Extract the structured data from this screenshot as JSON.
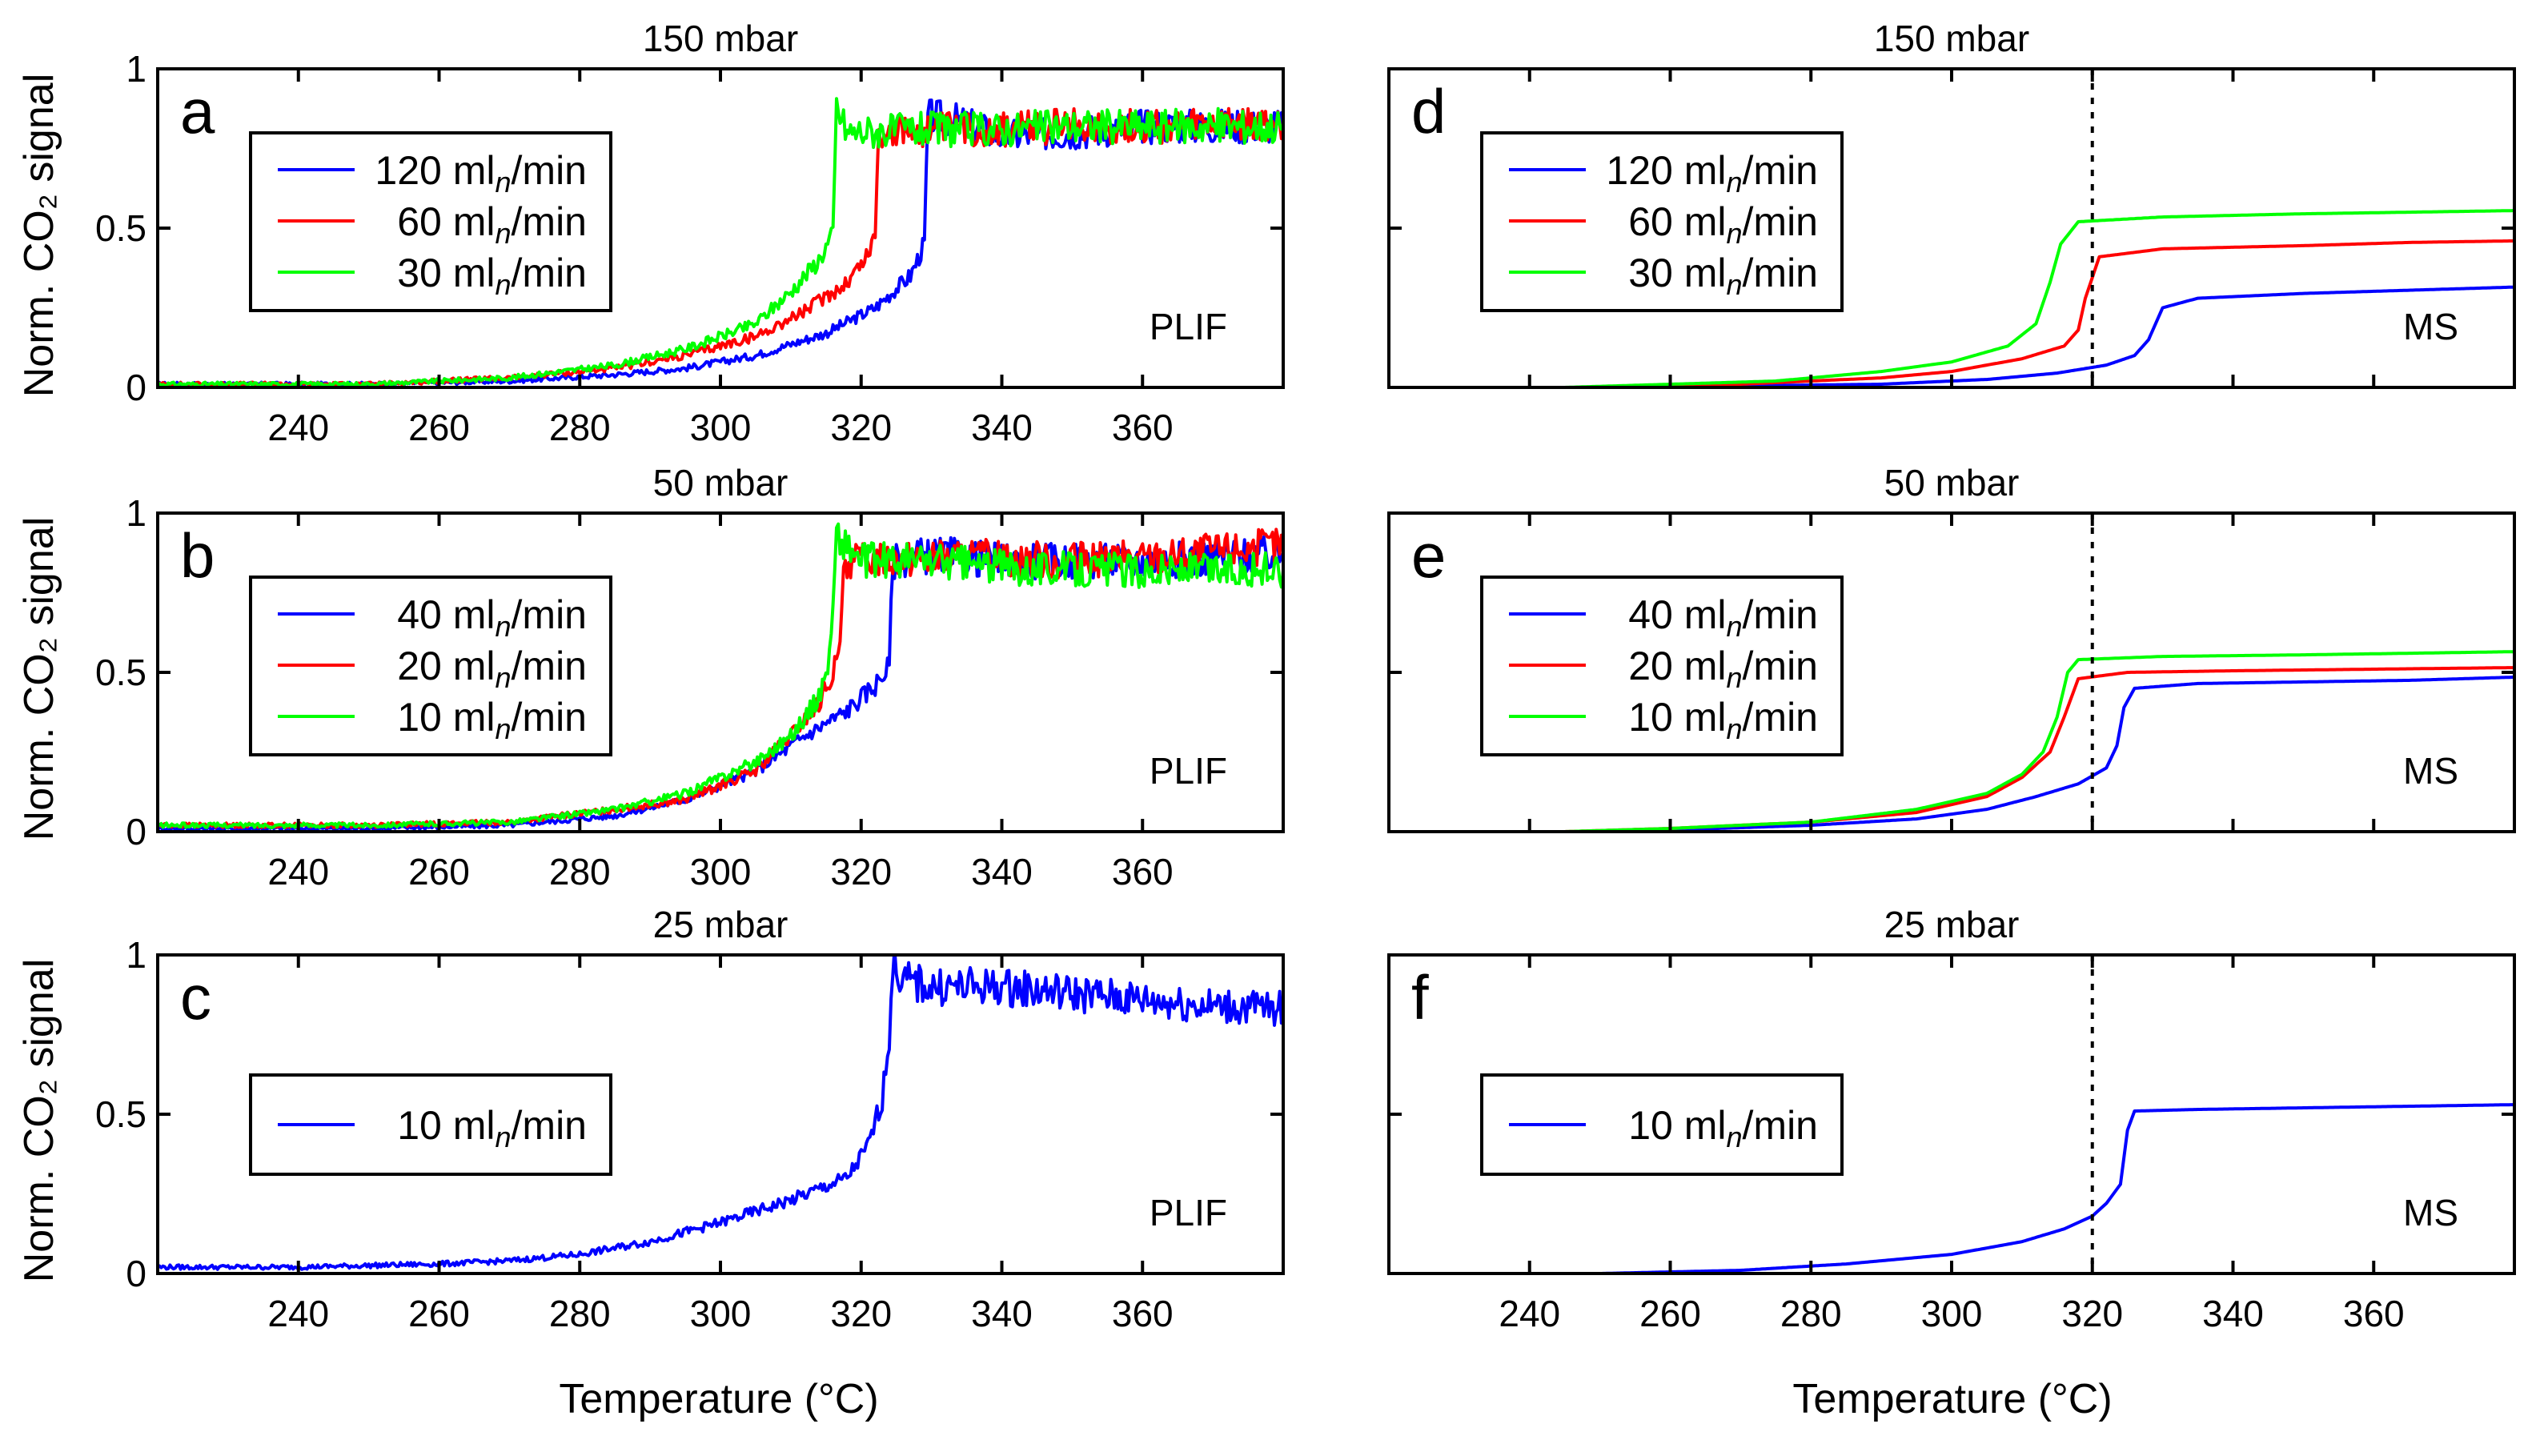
{
  "figure": {
    "xlabel": "Temperature (°C)",
    "ylabel": "Norm. CO₂ signal"
  },
  "colors": {
    "blue": "#0000ff",
    "red": "#ff0000",
    "green": "#00ff00",
    "black": "#000000"
  },
  "chart_data": [
    {
      "id": "a",
      "type": "line",
      "letter": "a",
      "title": "150 mbar",
      "method": "PLIF",
      "xlim": [
        220,
        380
      ],
      "ylim": [
        0,
        1
      ],
      "xticks": [
        240,
        260,
        280,
        300,
        320,
        340,
        360
      ],
      "yticks": [
        "0",
        "0.5",
        "1"
      ],
      "grid": false,
      "legend_placement": "upper-left",
      "noisy": true,
      "series": [
        {
          "name": "120 ml_n/min",
          "label_num": "120",
          "color": "#0000ff",
          "x": [
            220,
            250,
            270,
            285,
            295,
            305,
            315,
            322,
            327,
            329,
            329.5,
            333,
            340,
            350,
            360,
            380
          ],
          "y": [
            0.01,
            0.01,
            0.02,
            0.04,
            0.06,
            0.1,
            0.17,
            0.25,
            0.35,
            0.45,
            0.85,
            0.84,
            0.79,
            0.8,
            0.82,
            0.82
          ]
        },
        {
          "name": "60 ml_n/min",
          "label_num": "60",
          "color": "#ff0000",
          "x": [
            220,
            250,
            270,
            285,
            295,
            305,
            312,
            318,
            321,
            322,
            322.5,
            330,
            340,
            350,
            360,
            380
          ],
          "y": [
            0.01,
            0.01,
            0.03,
            0.06,
            0.1,
            0.16,
            0.24,
            0.33,
            0.42,
            0.48,
            0.8,
            0.81,
            0.81,
            0.82,
            0.82,
            0.82
          ]
        },
        {
          "name": "30 ml_n/min",
          "label_num": "30",
          "color": "#00ff00",
          "x": [
            220,
            250,
            270,
            285,
            295,
            305,
            310,
            314,
            316,
            316.5,
            318,
            330,
            340,
            350,
            360,
            380
          ],
          "y": [
            0.01,
            0.01,
            0.03,
            0.07,
            0.12,
            0.2,
            0.3,
            0.4,
            0.48,
            0.88,
            0.8,
            0.81,
            0.81,
            0.82,
            0.82,
            0.82
          ]
        }
      ]
    },
    {
      "id": "b",
      "type": "line",
      "letter": "b",
      "title": "50 mbar",
      "method": "PLIF",
      "xlim": [
        220,
        380
      ],
      "ylim": [
        0,
        1
      ],
      "xticks": [
        240,
        260,
        280,
        300,
        320,
        340,
        360
      ],
      "yticks": [
        "0",
        "0.5",
        "1"
      ],
      "grid": false,
      "legend_placement": "upper-left",
      "noisy": true,
      "series": [
        {
          "name": "40 ml_n/min",
          "label_num": "40",
          "color": "#0000ff",
          "x": [
            220,
            250,
            270,
            285,
            295,
            305,
            312,
            318,
            322,
            324,
            324.5,
            330,
            340,
            350,
            360,
            380
          ],
          "y": [
            0.01,
            0.01,
            0.02,
            0.05,
            0.1,
            0.19,
            0.3,
            0.38,
            0.46,
            0.52,
            0.85,
            0.87,
            0.85,
            0.85,
            0.85,
            0.87
          ]
        },
        {
          "name": "20 ml_n/min",
          "label_num": "20",
          "color": "#ff0000",
          "x": [
            220,
            250,
            270,
            285,
            295,
            305,
            310,
            314,
            316,
            317,
            317.5,
            325,
            340,
            350,
            360,
            380
          ],
          "y": [
            0.02,
            0.02,
            0.03,
            0.07,
            0.1,
            0.19,
            0.3,
            0.4,
            0.5,
            0.56,
            0.85,
            0.86,
            0.86,
            0.85,
            0.86,
            0.9
          ]
        },
        {
          "name": "10 ml_n/min",
          "label_num": "10",
          "color": "#00ff00",
          "x": [
            220,
            250,
            270,
            285,
            295,
            305,
            310,
            314,
            315.5,
            316,
            316.5,
            320,
            330,
            340,
            360,
            380
          ],
          "y": [
            0.02,
            0.02,
            0.03,
            0.07,
            0.12,
            0.22,
            0.3,
            0.42,
            0.55,
            0.7,
            0.93,
            0.85,
            0.85,
            0.83,
            0.82,
            0.82
          ]
        }
      ]
    },
    {
      "id": "c",
      "type": "line",
      "letter": "c",
      "title": "25 mbar",
      "method": "PLIF",
      "xlim": [
        220,
        380
      ],
      "ylim": [
        0,
        1
      ],
      "xticks": [
        240,
        260,
        280,
        300,
        320,
        340,
        360
      ],
      "yticks": [
        "0",
        "0.5",
        "1"
      ],
      "grid": false,
      "legend_placement": "left",
      "noisy": true,
      "series": [
        {
          "name": "10 ml_n/min",
          "label_num": "10",
          "color": "#0000ff",
          "x": [
            220,
            240,
            260,
            270,
            280,
            290,
            300,
            310,
            318,
            321,
            323,
            324,
            324.5,
            326,
            330,
            340,
            350,
            360,
            370,
            380
          ],
          "y": [
            0.02,
            0.02,
            0.03,
            0.04,
            0.06,
            0.1,
            0.16,
            0.23,
            0.3,
            0.4,
            0.55,
            0.75,
            0.97,
            0.92,
            0.9,
            0.9,
            0.88,
            0.86,
            0.84,
            0.83
          ]
        }
      ]
    },
    {
      "id": "d",
      "type": "line",
      "letter": "d",
      "title": "150 mbar",
      "method": "MS",
      "xlim": [
        220,
        380
      ],
      "ylim": [
        0,
        1
      ],
      "xticks": [],
      "yticks": [],
      "grid": false,
      "legend_placement": "upper-left",
      "noisy": false,
      "vline": 320,
      "series": [
        {
          "name": "120 ml_n/min",
          "label_num": "120",
          "color": "#0000ff",
          "x": [
            220,
            250,
            270,
            290,
            305,
            315,
            322,
            326,
            328,
            330,
            335,
            350,
            365,
            380
          ],
          "y": [
            0.0,
            0.0,
            0.005,
            0.01,
            0.025,
            0.045,
            0.07,
            0.1,
            0.15,
            0.25,
            0.28,
            0.295,
            0.305,
            0.315
          ]
        },
        {
          "name": "60 ml_n/min",
          "label_num": "60",
          "color": "#ff0000",
          "x": [
            220,
            250,
            270,
            290,
            300,
            310,
            316,
            318,
            319,
            321,
            330,
            350,
            365,
            380
          ],
          "y": [
            0.0,
            0.0,
            0.01,
            0.03,
            0.05,
            0.09,
            0.13,
            0.18,
            0.28,
            0.41,
            0.435,
            0.445,
            0.455,
            0.46
          ]
        },
        {
          "name": "30 ml_n/min",
          "label_num": "30",
          "color": "#00ff00",
          "x": [
            220,
            245,
            260,
            275,
            290,
            300,
            308,
            312,
            314,
            315.5,
            318,
            330,
            350,
            365,
            380
          ],
          "y": [
            0.0,
            0.0,
            0.01,
            0.02,
            0.05,
            0.08,
            0.13,
            0.2,
            0.33,
            0.45,
            0.52,
            0.535,
            0.545,
            0.55,
            0.555
          ]
        }
      ]
    },
    {
      "id": "e",
      "type": "line",
      "letter": "e",
      "title": "50 mbar",
      "method": "MS",
      "xlim": [
        220,
        380
      ],
      "ylim": [
        0,
        1
      ],
      "xticks": [],
      "yticks": [],
      "grid": false,
      "legend_placement": "upper-left",
      "noisy": false,
      "vline": 320,
      "series": [
        {
          "name": "40 ml_n/min",
          "label_num": "40",
          "color": "#0000ff",
          "x": [
            220,
            248,
            260,
            280,
            295,
            305,
            312,
            318,
            322,
            323.5,
            324.5,
            326,
            335,
            350,
            365,
            380
          ],
          "y": [
            0.0,
            0.0,
            0.005,
            0.02,
            0.04,
            0.07,
            0.11,
            0.15,
            0.2,
            0.27,
            0.39,
            0.45,
            0.465,
            0.47,
            0.475,
            0.485
          ]
        },
        {
          "name": "20 ml_n/min",
          "label_num": "20",
          "color": "#ff0000",
          "x": [
            220,
            245,
            260,
            280,
            295,
            305,
            310,
            314,
            316,
            318,
            325,
            340,
            360,
            380
          ],
          "y": [
            0.0,
            0.0,
            0.01,
            0.03,
            0.06,
            0.11,
            0.17,
            0.25,
            0.36,
            0.48,
            0.5,
            0.505,
            0.51,
            0.515
          ]
        },
        {
          "name": "10 ml_n/min",
          "label_num": "10",
          "color": "#00ff00",
          "x": [
            220,
            245,
            260,
            280,
            295,
            305,
            310,
            313,
            315,
            316.5,
            318,
            330,
            350,
            365,
            380
          ],
          "y": [
            0.0,
            0.0,
            0.01,
            0.03,
            0.07,
            0.12,
            0.18,
            0.25,
            0.36,
            0.5,
            0.54,
            0.55,
            0.555,
            0.56,
            0.565
          ]
        }
      ]
    },
    {
      "id": "f",
      "type": "line",
      "letter": "f",
      "title": "25 mbar",
      "method": "MS",
      "xlim": [
        220,
        380
      ],
      "ylim": [
        0,
        1
      ],
      "xticks": [
        240,
        260,
        280,
        300,
        320,
        340,
        360
      ],
      "yticks": [],
      "grid": false,
      "legend_placement": "left",
      "noisy": false,
      "vline": 320,
      "series": [
        {
          "name": "10 ml_n/min",
          "label_num": "10",
          "color": "#0000ff",
          "x": [
            220,
            250,
            270,
            285,
            300,
            310,
            316,
            320,
            322,
            324,
            325,
            326,
            335,
            350,
            365,
            380
          ],
          "y": [
            0.0,
            0.0,
            0.01,
            0.03,
            0.06,
            0.1,
            0.14,
            0.18,
            0.22,
            0.28,
            0.45,
            0.51,
            0.515,
            0.52,
            0.525,
            0.53
          ]
        }
      ]
    }
  ]
}
